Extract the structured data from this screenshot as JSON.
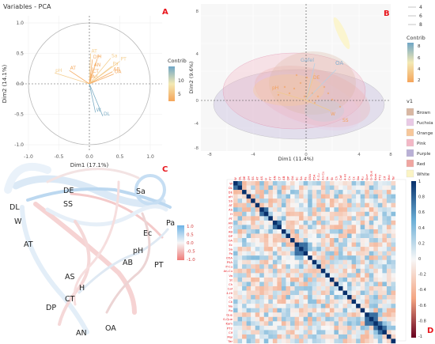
{
  "panel_letters": [
    "A",
    "B",
    "C",
    "D"
  ],
  "colors": {
    "accent_red": "#e8161d",
    "contrib_high": "#6fa6c6",
    "contrib_mid": "#f3e9b4",
    "contrib_low": "#f5a55a",
    "heat_pos": "#08306b",
    "heat_neg": "#67001f"
  },
  "chart_data": [
    {
      "panel": "A",
      "type": "scatter",
      "subtype": "pca-variable-correlation-circle",
      "title": "Variables - PCA",
      "xlabel": "Dim1 (17.1%)",
      "ylabel": "Dim2 (14.1%)",
      "xlim": [
        -1.0,
        1.0
      ],
      "ylim": [
        -1.0,
        1.0
      ],
      "xticks": [
        "-1.0",
        "-0.5",
        "0.0",
        "0.5",
        "1.0"
      ],
      "yticks": [
        "-1.0",
        "-0.5",
        "0.0",
        "0.5",
        "1.0"
      ],
      "legend_title": "Contrib",
      "legend_ticks": [
        "10",
        "5"
      ],
      "grid": true,
      "variables": [
        {
          "label": "AT",
          "x": 0.02,
          "y": 0.5
        },
        {
          "label": "DP",
          "x": 0.05,
          "y": 0.4
        },
        {
          "label": "H",
          "x": 0.13,
          "y": 0.41
        },
        {
          "label": "AN",
          "x": 0.06,
          "y": 0.27
        },
        {
          "label": "CT",
          "x": 0.04,
          "y": 0.17
        },
        {
          "label": "AS",
          "x": 0.03,
          "y": 0.08
        },
        {
          "label": "Sa",
          "x": 0.35,
          "y": 0.42
        },
        {
          "label": "PT",
          "x": 0.5,
          "y": 0.37
        },
        {
          "label": "Pa",
          "x": 0.37,
          "y": 0.29
        },
        {
          "label": "OA",
          "x": 0.4,
          "y": 0.16
        },
        {
          "label": "AB",
          "x": 0.38,
          "y": 0.2
        },
        {
          "label": "pH",
          "x": -0.57,
          "y": 0.18
        },
        {
          "label": "AT",
          "x": -0.33,
          "y": 0.22
        },
        {
          "label": "W",
          "x": 0.1,
          "y": -0.47
        },
        {
          "label": "DL",
          "x": 0.22,
          "y": -0.53
        }
      ]
    },
    {
      "panel": "B",
      "type": "scatter",
      "subtype": "pca-biplot-with-ellipses",
      "xlabel": "Dim1 (11.4%)",
      "ylabel": "Dim2 (9.6%)",
      "xticks": [
        "-8",
        "-4",
        "0",
        "4",
        "8"
      ],
      "yticks": [
        "8",
        "4",
        "0",
        "-4",
        "-8"
      ],
      "size_legend": [
        "4",
        "6",
        "8"
      ],
      "contrib_legend": {
        "title": "Contrib",
        "ticks": [
          "8",
          "6",
          "4",
          "2"
        ]
      },
      "group_legend": {
        "title": "v1",
        "entries": [
          "Brown",
          "Fuchsia",
          "Orange",
          "Pink",
          "Purple",
          "Red",
          "White"
        ]
      },
      "labels": [
        "Gafel",
        "OA",
        "pH",
        "DE",
        "W",
        "SS"
      ]
    },
    {
      "panel": "C",
      "type": "diagram",
      "subtype": "correlation-network",
      "nodes": [
        "DL",
        "W",
        "DE",
        "SS",
        "AT",
        "Sa",
        "Pa",
        "Ec",
        "pH",
        "AB",
        "PT",
        "AS",
        "H",
        "CT",
        "DP",
        "AN",
        "OA"
      ],
      "legend_ticks": [
        "1.0",
        "0.5",
        "0.0",
        "-0.5",
        "-1.0"
      ]
    },
    {
      "panel": "D",
      "type": "heatmap",
      "subtype": "correlation-matrix",
      "variables": [
        "W",
        "DL",
        "DE",
        "pH",
        "SS",
        "AT",
        "AS",
        "H",
        "PT",
        "AN",
        "CT",
        "AB",
        "DP",
        "OA",
        "Ec",
        "Sa",
        "Pa",
        "O5A",
        "P5A",
        "P-Cu",
        "An-Cu",
        "Va",
        "St",
        "Ch",
        "Caf",
        "4-Hi",
        "Cn",
        "Ck",
        "Na",
        "Ru",
        "Que",
        "G-Que",
        "Kam",
        "PT2",
        "Cif",
        "Mal",
        "Tar"
      ],
      "colorbar_ticks": [
        "1",
        "0.8",
        "0.6",
        "0.4",
        "0.2",
        "0",
        "-0.2",
        "-0.4",
        "-0.6",
        "-0.8",
        "-1"
      ],
      "clim": [
        -1,
        1
      ],
      "highlighted_pairs": [
        [
          "Ec",
          "Sa"
        ],
        [
          "Ec",
          "Pa"
        ],
        [
          "Sa",
          "Pa"
        ],
        [
          "Que",
          "G-Que"
        ],
        [
          "Que",
          "Kam"
        ],
        [
          "G-Que",
          "Kam"
        ],
        [
          "Kam",
          "PT2"
        ],
        [
          "PT2",
          "Cif"
        ],
        [
          "W",
          "DL"
        ],
        [
          "AN",
          "CT"
        ],
        [
          "AS",
          "H"
        ]
      ]
    }
  ]
}
